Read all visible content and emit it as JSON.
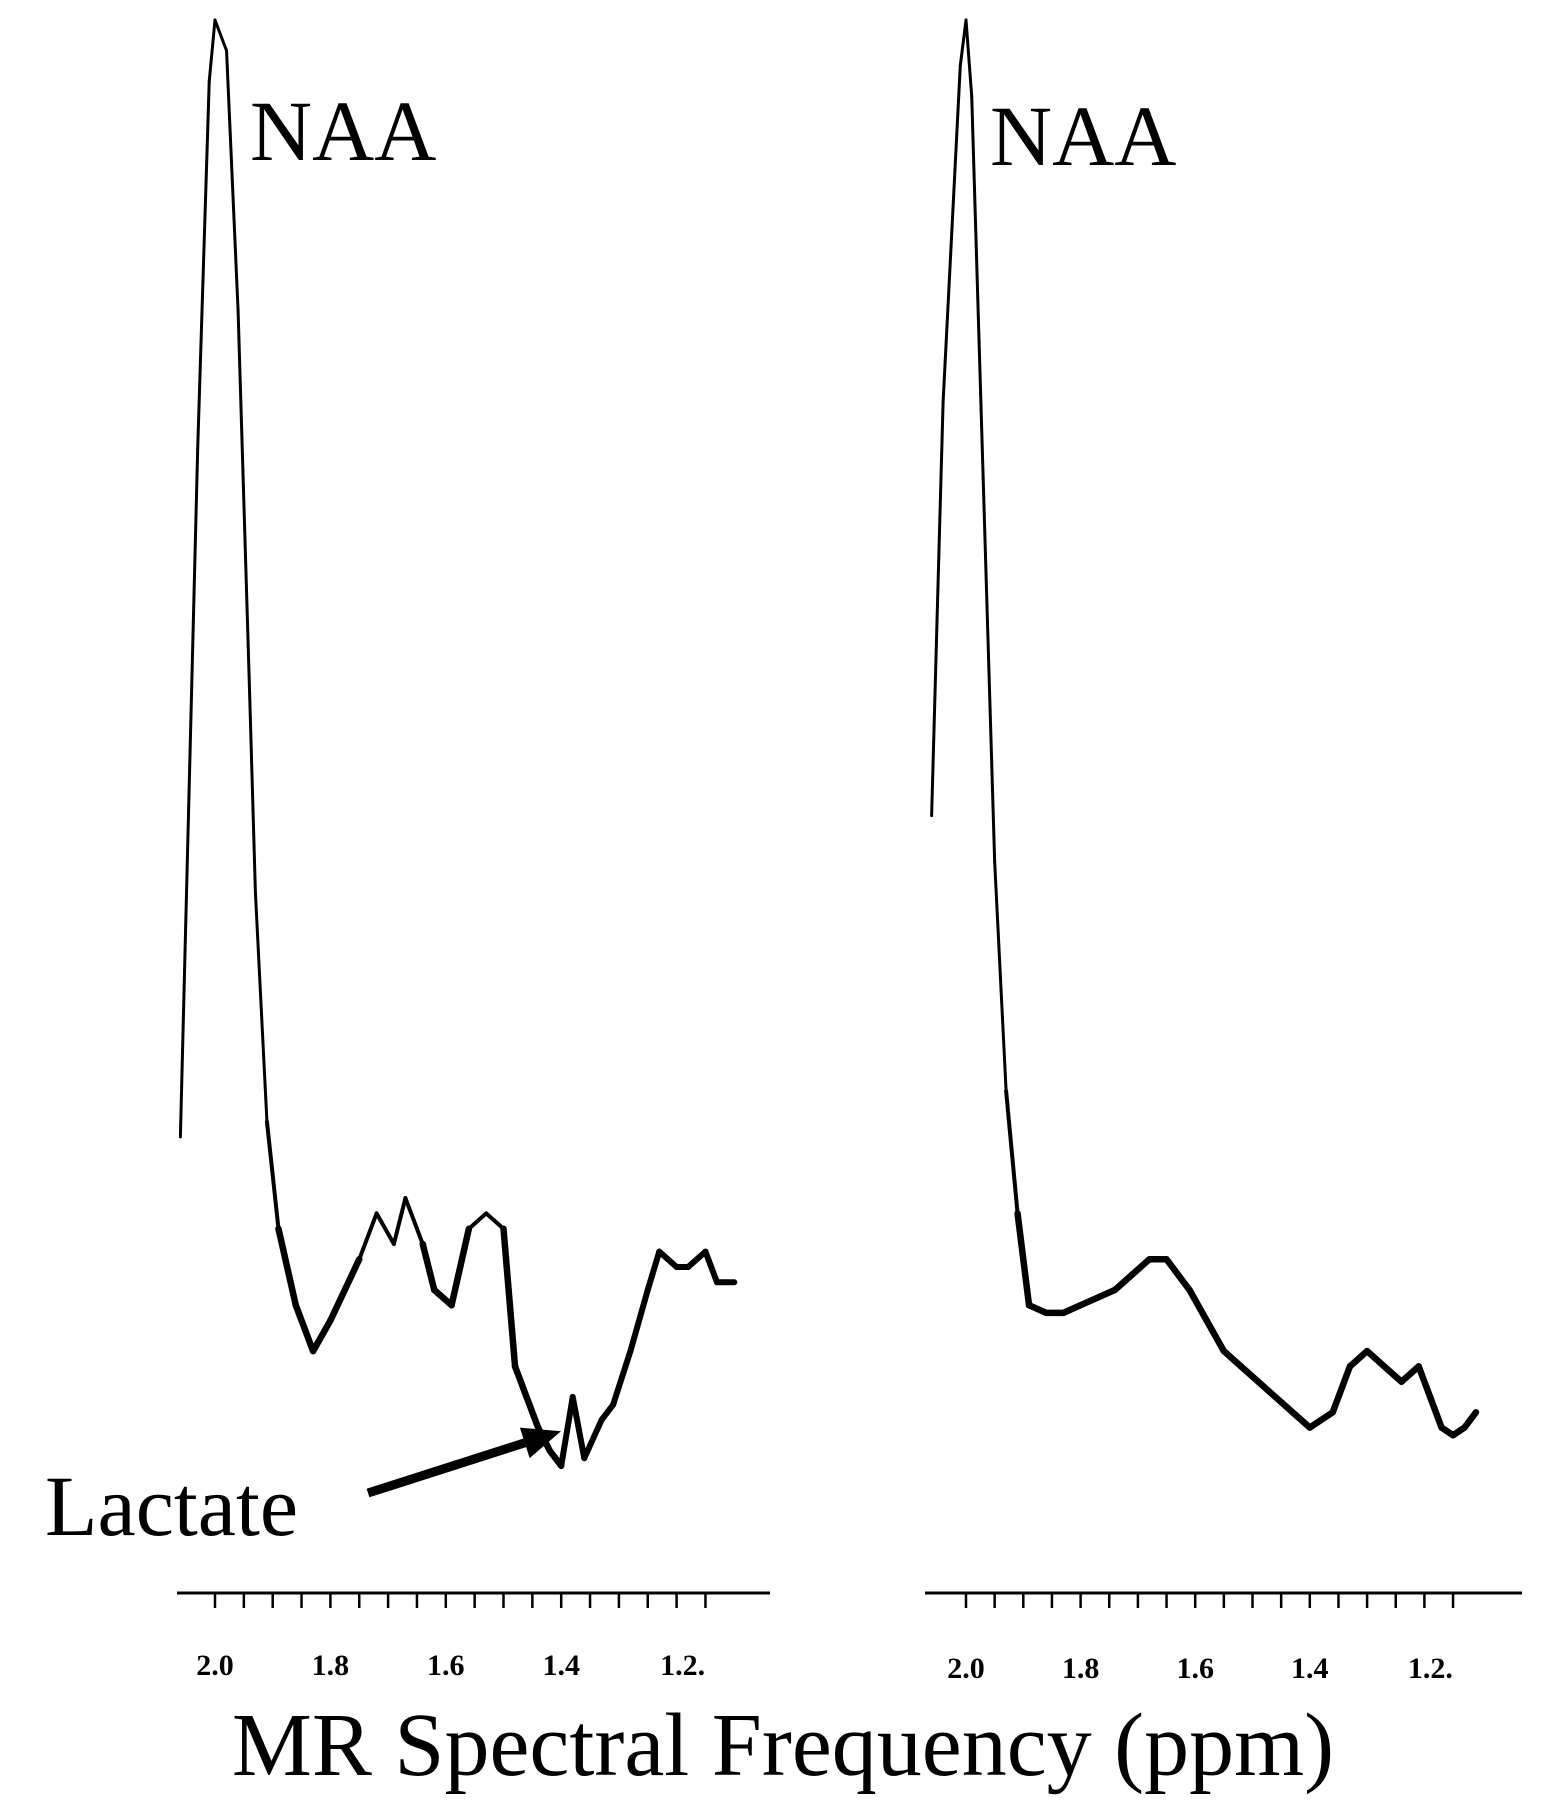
{
  "xlabel": "MR Spectral Frequency (ppm)",
  "colors": {
    "line": "#000000",
    "background": "#ffffff"
  },
  "chart_data": [
    {
      "type": "line",
      "panel": "left",
      "xlim": [
        2.06,
        1.1
      ],
      "ylim": [
        0,
        100
      ],
      "ticks": [
        2.0,
        1.95,
        1.9,
        1.85,
        1.8,
        1.75,
        1.7,
        1.65,
        1.6,
        1.55,
        1.5,
        1.45,
        1.4,
        1.35,
        1.3,
        1.25,
        1.2,
        1.15
      ],
      "tick_labels": [
        {
          "value": 2.0,
          "label": "2.0"
        },
        {
          "value": 1.8,
          "label": "1.8"
        },
        {
          "value": 1.6,
          "label": "1.6"
        },
        {
          "value": 1.4,
          "label": "1.4"
        },
        {
          "value": 1.2,
          "label": "1.2."
        }
      ],
      "peak_label": "NAA",
      "annotation": {
        "text": "Lactate",
        "points_to_x": 1.39,
        "points_to_y": 7.5
      },
      "x": [
        2.06,
        2.03,
        2.01,
        2.0,
        1.98,
        1.96,
        1.94,
        1.93,
        1.91,
        1.89,
        1.86,
        1.83,
        1.8,
        1.75,
        1.72,
        1.69,
        1.67,
        1.64,
        1.62,
        1.59,
        1.56,
        1.53,
        1.5,
        1.48,
        1.46,
        1.44,
        1.42,
        1.4,
        1.38,
        1.36,
        1.33,
        1.31,
        1.28,
        1.25,
        1.23,
        1.2,
        1.18,
        1.15,
        1.13,
        1.1
      ],
      "y": [
        27,
        72,
        96,
        100,
        98,
        81,
        56,
        43,
        28,
        21,
        16,
        13,
        15,
        19,
        22,
        20,
        23,
        20,
        17,
        16,
        21,
        22,
        21,
        12,
        10,
        8,
        6.5,
        5.5,
        10,
        6,
        8.5,
        9.5,
        13,
        17,
        19.5,
        18.5,
        18.5,
        19.5,
        17.5,
        17.5
      ]
    },
    {
      "type": "line",
      "panel": "right",
      "xlim": [
        2.06,
        1.1
      ],
      "ylim": [
        0,
        100
      ],
      "ticks": [
        2.0,
        1.95,
        1.9,
        1.85,
        1.8,
        1.75,
        1.7,
        1.65,
        1.6,
        1.55,
        1.5,
        1.45,
        1.4,
        1.35,
        1.3,
        1.25,
        1.2,
        1.15
      ],
      "tick_labels": [
        {
          "value": 2.0,
          "label": "2.0"
        },
        {
          "value": 1.8,
          "label": "1.8"
        },
        {
          "value": 1.6,
          "label": "1.6"
        },
        {
          "value": 1.4,
          "label": "1.4"
        },
        {
          "value": 1.2,
          "label": "1.2."
        }
      ],
      "peak_label": "NAA",
      "x": [
        2.06,
        2.04,
        2.01,
        2.0,
        1.99,
        1.97,
        1.95,
        1.93,
        1.91,
        1.89,
        1.86,
        1.83,
        1.8,
        1.77,
        1.74,
        1.71,
        1.68,
        1.65,
        1.61,
        1.58,
        1.55,
        1.52,
        1.49,
        1.46,
        1.43,
        1.4,
        1.36,
        1.33,
        1.3,
        1.27,
        1.24,
        1.21,
        1.19,
        1.17,
        1.15,
        1.13,
        1.11
      ],
      "y": [
        48,
        75,
        97,
        100,
        95,
        70,
        45,
        30,
        22,
        16,
        15.5,
        15.5,
        16,
        16.5,
        17,
        18,
        19,
        19,
        17,
        15,
        13,
        12,
        11,
        10,
        9,
        8,
        9,
        12,
        13,
        12,
        11,
        12,
        10,
        8,
        7.5,
        8,
        9
      ]
    }
  ]
}
